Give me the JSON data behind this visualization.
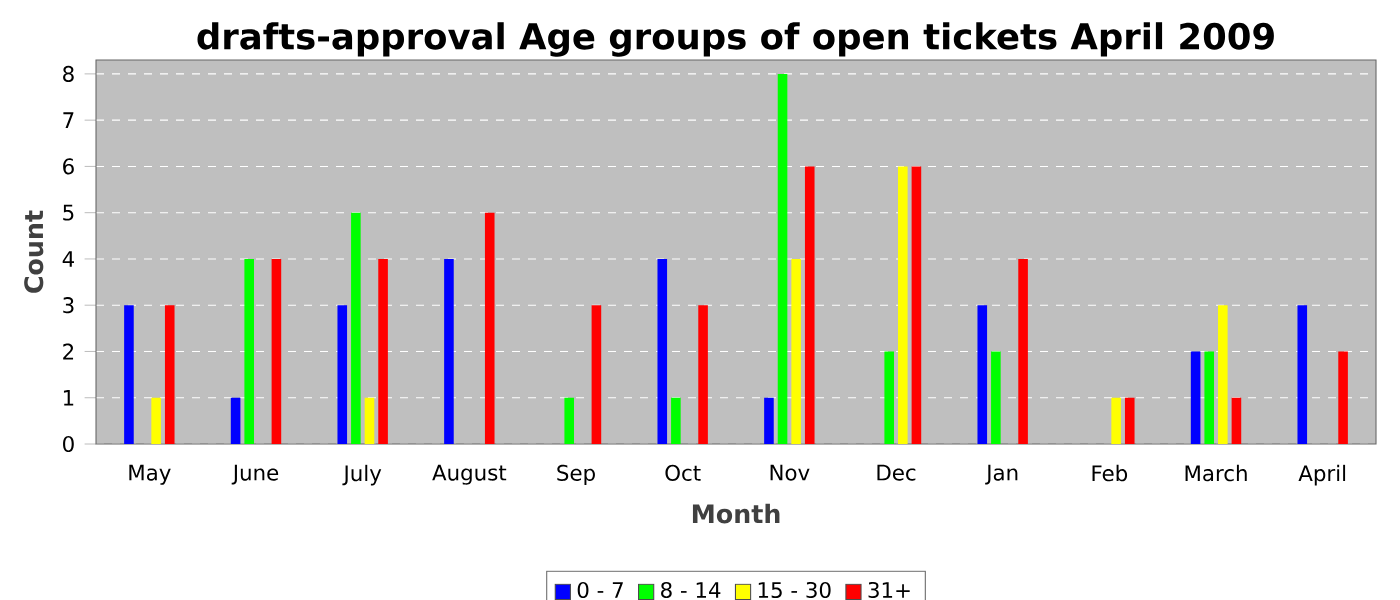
{
  "chart_data": {
    "type": "bar",
    "title": "drafts-approval Age groups of open tickets April 2009",
    "xlabel": "Month",
    "ylabel": "Count",
    "categories": [
      "May",
      "June",
      "July",
      "August",
      "Sep",
      "Oct",
      "Nov",
      "Dec",
      "Jan",
      "Feb",
      "March",
      "April"
    ],
    "series": [
      {
        "name": "0 - 7",
        "color": "#0000ff",
        "values": [
          3,
          1,
          3,
          4,
          null,
          4,
          1,
          null,
          3,
          null,
          2,
          3
        ]
      },
      {
        "name": "8 - 14",
        "color": "#00ff00",
        "values": [
          null,
          4,
          5,
          null,
          1,
          1,
          8,
          2,
          2,
          null,
          2,
          null
        ]
      },
      {
        "name": "15 - 30",
        "color": "#ffff00",
        "values": [
          1,
          null,
          1,
          null,
          null,
          null,
          4,
          6,
          null,
          1,
          3,
          null
        ]
      },
      {
        "name": "31+",
        "color": "#ff0000",
        "values": [
          3,
          4,
          4,
          5,
          3,
          3,
          6,
          6,
          4,
          1,
          1,
          2
        ]
      }
    ],
    "ylim": [
      0,
      8.3
    ],
    "yticks": [
      0,
      1,
      2,
      3,
      4,
      5,
      6,
      7,
      8
    ],
    "grid": "y",
    "legend": "bottom"
  }
}
